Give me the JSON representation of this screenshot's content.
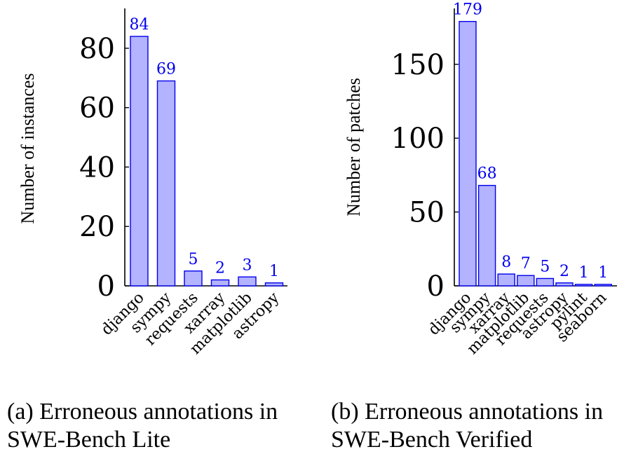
{
  "chart_data": [
    {
      "type": "bar",
      "title": "",
      "xlabel": "",
      "ylabel": "Number of instances",
      "categories": [
        "django",
        "sympy",
        "requests",
        "xarray",
        "matplotlib",
        "astropy"
      ],
      "values": [
        84,
        69,
        5,
        2,
        3,
        1
      ],
      "ylim": [
        0,
        92
      ],
      "yticks": [
        0,
        20,
        40,
        60,
        80
      ],
      "caption_line1": "(a) Erroneous annotations in",
      "caption_line2": "SWE-Bench Lite",
      "bar_fill": "#b3b3ff",
      "bar_stroke": "#0000ee",
      "label_color": "#0000ee"
    },
    {
      "type": "bar",
      "title": "",
      "xlabel": "",
      "ylabel": "Number of patches",
      "categories": [
        "django",
        "sympy",
        "xarray",
        "matplotlib",
        "requests",
        "astropy",
        "pylint",
        "seaborn"
      ],
      "values": [
        179,
        68,
        8,
        7,
        5,
        2,
        1,
        1
      ],
      "ylim": [
        0,
        185
      ],
      "yticks": [
        0,
        50,
        100,
        150
      ],
      "caption_line1": "(b) Erroneous annotations in",
      "caption_line2": "SWE-Bench Verified",
      "bar_fill": "#b3b3ff",
      "bar_stroke": "#0000ee",
      "label_color": "#0000ee"
    }
  ]
}
